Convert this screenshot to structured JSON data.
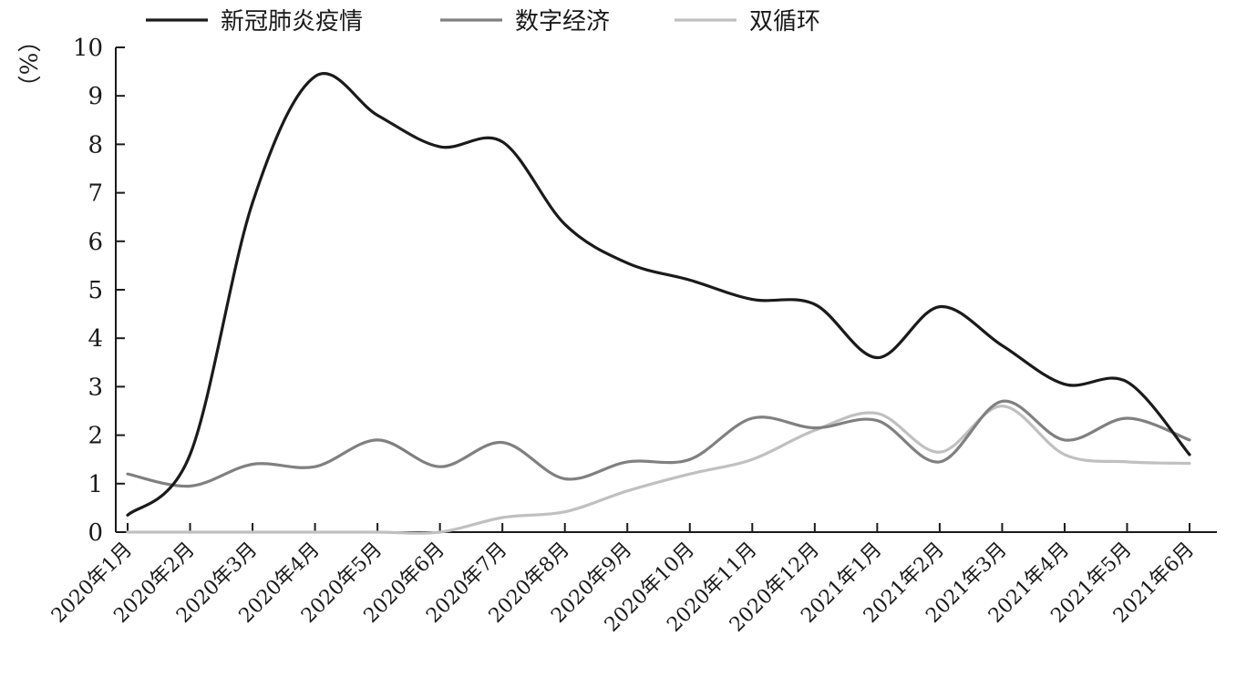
{
  "chart_data": {
    "type": "line",
    "ylabel": "（%）",
    "ylim": [
      0,
      10
    ],
    "yticks": [
      "0",
      "1",
      "2",
      "3",
      "4",
      "5",
      "6",
      "7",
      "8",
      "9",
      "10"
    ],
    "categories": [
      "2020年1月",
      "2020年2月",
      "2020年3月",
      "2020年4月",
      "2020年5月",
      "2020年6月",
      "2020年7月",
      "2020年8月",
      "2020年9月",
      "2020年10月",
      "2020年11月",
      "2020年12月",
      "2021年1月",
      "2021年2月",
      "2021年3月",
      "2021年4月",
      "2021年5月",
      "2021年6月"
    ],
    "legend_position": "top",
    "grid": false,
    "series": [
      {
        "name": "新冠肺炎疫情",
        "color": "#1a1a1a",
        "values": [
          0.35,
          1.6,
          6.8,
          9.4,
          8.6,
          7.95,
          8.05,
          6.35,
          5.55,
          5.2,
          4.8,
          4.7,
          3.6,
          4.65,
          3.85,
          3.05,
          3.1,
          1.6
        ]
      },
      {
        "name": "数字经济",
        "color": "#808080",
        "values": [
          1.2,
          0.95,
          1.4,
          1.35,
          1.9,
          1.35,
          1.85,
          1.1,
          1.45,
          1.5,
          2.35,
          2.15,
          2.3,
          1.45,
          2.7,
          1.9,
          2.35,
          1.9
        ]
      },
      {
        "name": "双循环",
        "color": "#c0c0c0",
        "values": [
          0,
          0,
          0,
          0,
          0,
          0,
          0.3,
          0.42,
          0.85,
          1.2,
          1.5,
          2.1,
          2.45,
          1.65,
          2.6,
          1.6,
          1.45,
          1.42
        ]
      }
    ]
  }
}
